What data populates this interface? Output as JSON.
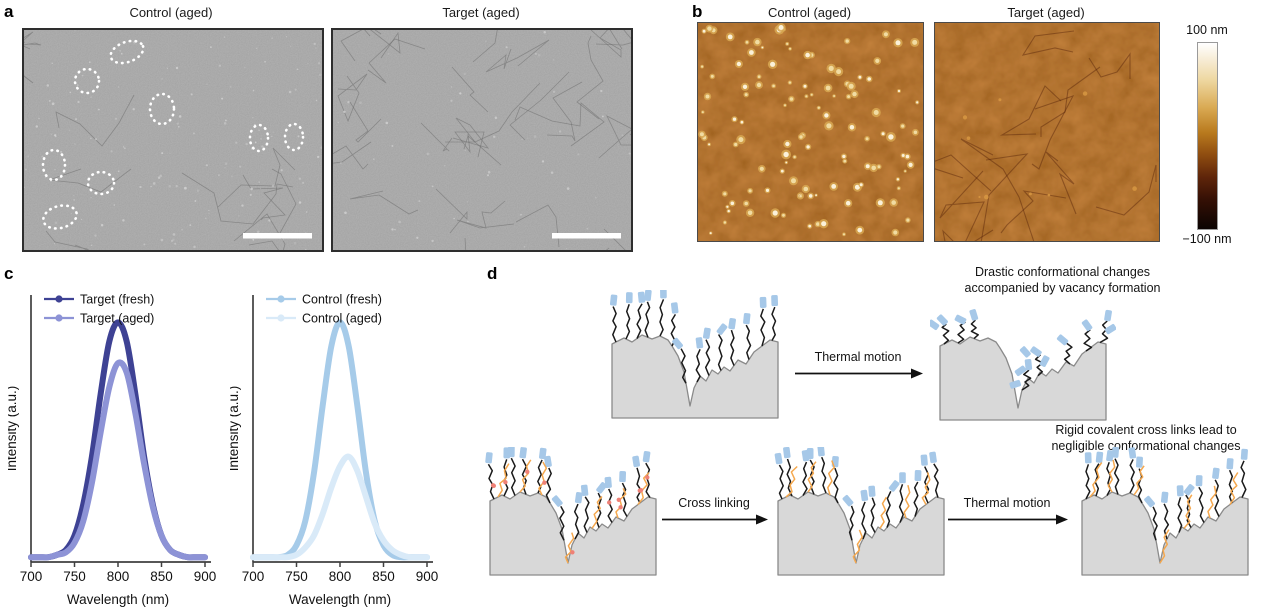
{
  "panel_a": {
    "label": "a",
    "images": [
      {
        "title": "Control (aged)"
      },
      {
        "title": "Target (aged)"
      }
    ]
  },
  "panel_b": {
    "label": "b",
    "images": [
      {
        "title": "Control (aged)"
      },
      {
        "title": "Target (aged)"
      }
    ],
    "colorbar": {
      "top_label": "100 nm",
      "bottom_label": "−100 nm"
    }
  },
  "panel_c": {
    "label": "c"
  },
  "panel_d": {
    "label": "d",
    "caption_top": [
      "Drastic conformational changes",
      "accompanied by vacancy formation"
    ],
    "caption_bottom": [
      "Rigid covalent cross links lead to",
      "negligible conformational changes"
    ],
    "arrow_top": "Thermal motion",
    "arrow_bottom_1": "Cross linking",
    "arrow_bottom_2": "Thermal motion"
  },
  "chart_data": [
    {
      "type": "line",
      "xlabel": "Wavelength (nm)",
      "ylabel": "Intensity (a.u.)",
      "xlim": [
        700,
        900
      ],
      "ylim": [
        0,
        1.06
      ],
      "xticks": [
        700,
        750,
        800,
        850,
        900
      ],
      "grid": false,
      "legend_position": "upper-left",
      "x": [
        700,
        710,
        720,
        730,
        740,
        750,
        760,
        770,
        780,
        790,
        800,
        810,
        820,
        830,
        840,
        850,
        860,
        870,
        880,
        890,
        900
      ],
      "series": [
        {
          "name": "Target (fresh)",
          "color": "#3e4294",
          "values": [
            0.02,
            0.02,
            0.02,
            0.03,
            0.05,
            0.11,
            0.24,
            0.44,
            0.7,
            0.92,
            1.0,
            0.92,
            0.7,
            0.44,
            0.24,
            0.11,
            0.05,
            0.03,
            0.02,
            0.02,
            0.02
          ]
        },
        {
          "name": "Target (aged)",
          "color": "#8d93d6",
          "values": [
            0.02,
            0.02,
            0.02,
            0.03,
            0.04,
            0.08,
            0.17,
            0.33,
            0.54,
            0.73,
            0.83,
            0.79,
            0.62,
            0.41,
            0.23,
            0.11,
            0.05,
            0.03,
            0.02,
            0.02,
            0.02
          ]
        }
      ]
    },
    {
      "type": "line",
      "xlabel": "Wavelength (nm)",
      "ylabel": "Intensity (a.u.)",
      "xlim": [
        700,
        900
      ],
      "ylim": [
        0,
        1.06
      ],
      "xticks": [
        700,
        750,
        800,
        850,
        900
      ],
      "grid": false,
      "legend_position": "upper-left",
      "x": [
        700,
        710,
        720,
        730,
        740,
        750,
        760,
        770,
        780,
        790,
        800,
        810,
        820,
        830,
        840,
        850,
        860,
        870,
        880,
        890,
        900
      ],
      "series": [
        {
          "name": "Control (fresh)",
          "color": "#a6cbe9",
          "values": [
            0.02,
            0.02,
            0.02,
            0.02,
            0.03,
            0.07,
            0.17,
            0.37,
            0.65,
            0.9,
            1.0,
            0.9,
            0.65,
            0.37,
            0.17,
            0.07,
            0.03,
            0.02,
            0.02,
            0.02,
            0.02
          ]
        },
        {
          "name": "Control (aged)",
          "color": "#d9eaf8",
          "values": [
            0.02,
            0.02,
            0.02,
            0.02,
            0.02,
            0.03,
            0.06,
            0.11,
            0.2,
            0.31,
            0.4,
            0.44,
            0.38,
            0.27,
            0.16,
            0.09,
            0.05,
            0.03,
            0.02,
            0.02,
            0.02
          ]
        }
      ]
    }
  ],
  "colors": {
    "sem_base": "#8c8c8c",
    "afm_base": "#7e3508",
    "surface_fill": "#d8d8d8",
    "surface_stroke": "#8a8a8a",
    "chain_black": "#1a1a1a",
    "ligand_blue": "#a6c8e8",
    "crosslink_orange": "#f5a84e",
    "reactive_red": "#ef8177",
    "axis": "#3f3f3f"
  }
}
